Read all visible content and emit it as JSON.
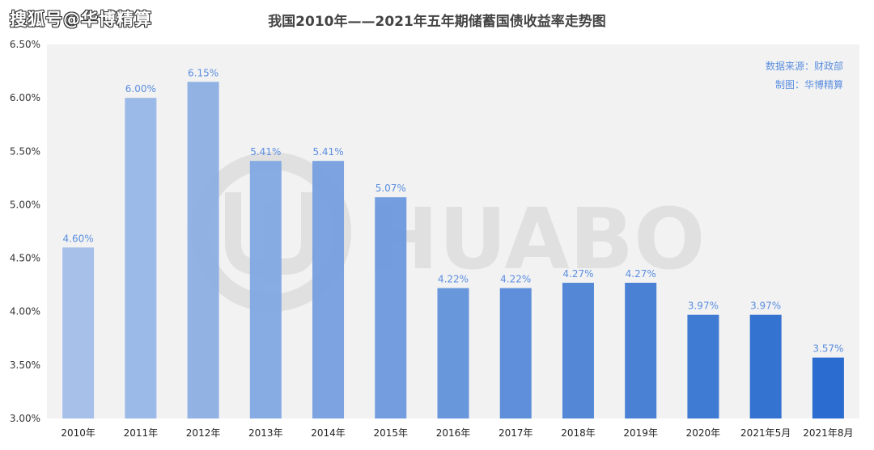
{
  "watermark_text": "搜狐号@华博精算",
  "brand_logo_text": "HUABO",
  "chart_data": {
    "type": "bar",
    "title": "我国2010年——2021年五年期储蓄国债收益率走势图",
    "categories": [
      "2010年",
      "2011年",
      "2012年",
      "2013年",
      "2014年",
      "2015年",
      "2016年",
      "2017年",
      "2018年",
      "2019年",
      "2020年",
      "2021年5月",
      "2021年8月"
    ],
    "values": [
      4.6,
      6.0,
      6.15,
      5.41,
      5.41,
      5.07,
      4.22,
      4.22,
      4.27,
      4.27,
      3.97,
      3.97,
      3.57
    ],
    "value_labels": [
      "4.60%",
      "6.00%",
      "6.15%",
      "5.41%",
      "5.41%",
      "5.07%",
      "4.22%",
      "4.22%",
      "4.27%",
      "4.27%",
      "3.97%",
      "3.97%",
      "3.57%"
    ],
    "ylim": [
      3.0,
      6.5
    ],
    "yticks": [
      "3.00%",
      "3.50%",
      "4.00%",
      "4.50%",
      "5.00%",
      "5.50%",
      "6.00%",
      "6.50%"
    ],
    "ytick_values": [
      3.0,
      3.5,
      4.0,
      4.5,
      5.0,
      5.5,
      6.0,
      6.5
    ],
    "grid": false,
    "annotations": [
      "数据来源：财政部",
      "制图：华博精算"
    ],
    "colors": {
      "bar_start": "#a2bde8",
      "bar_end": "#1f64cc",
      "label": "#5b8ee0",
      "annotation": "#5b8ee0",
      "plot_bg": "#f2f2f2"
    }
  }
}
